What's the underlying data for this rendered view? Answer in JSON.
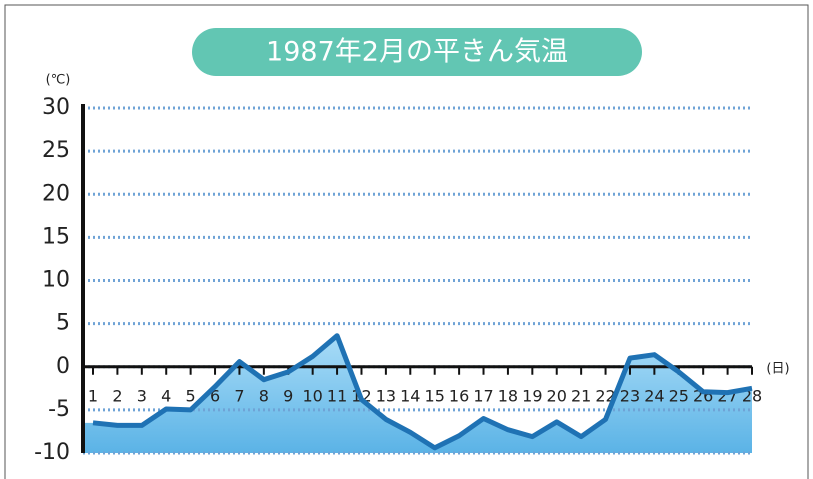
{
  "chart_data": {
    "type": "line",
    "title": "1987年2月の平きん気温",
    "y_unit": "(℃)",
    "x_unit": "(日)",
    "categories": [
      "1",
      "2",
      "3",
      "4",
      "5",
      "6",
      "7",
      "8",
      "9",
      "10",
      "11",
      "12",
      "13",
      "14",
      "15",
      "16",
      "17",
      "18",
      "19",
      "20",
      "21",
      "22",
      "23",
      "24",
      "25",
      "26",
      "27",
      "28"
    ],
    "series": [
      {
        "name": "平きん気温",
        "color": "#1f72b4",
        "values": [
          -6.5,
          -6.8,
          -6.8,
          -4.9,
          -5.0,
          -2.3,
          0.6,
          -1.5,
          -0.6,
          1.2,
          3.6,
          -3.8,
          -6.1,
          -7.6,
          -9.4,
          -8.0,
          -6.0,
          -7.3,
          -8.1,
          -6.4,
          -8.1,
          -6.1,
          1.0,
          1.4,
          -0.6,
          -2.9,
          -3.0,
          -2.5
        ]
      }
    ],
    "ylim": [
      -10,
      30
    ],
    "yticks": [
      -10,
      -5,
      0,
      5,
      10,
      15,
      20,
      25,
      30
    ],
    "grid": true
  }
}
